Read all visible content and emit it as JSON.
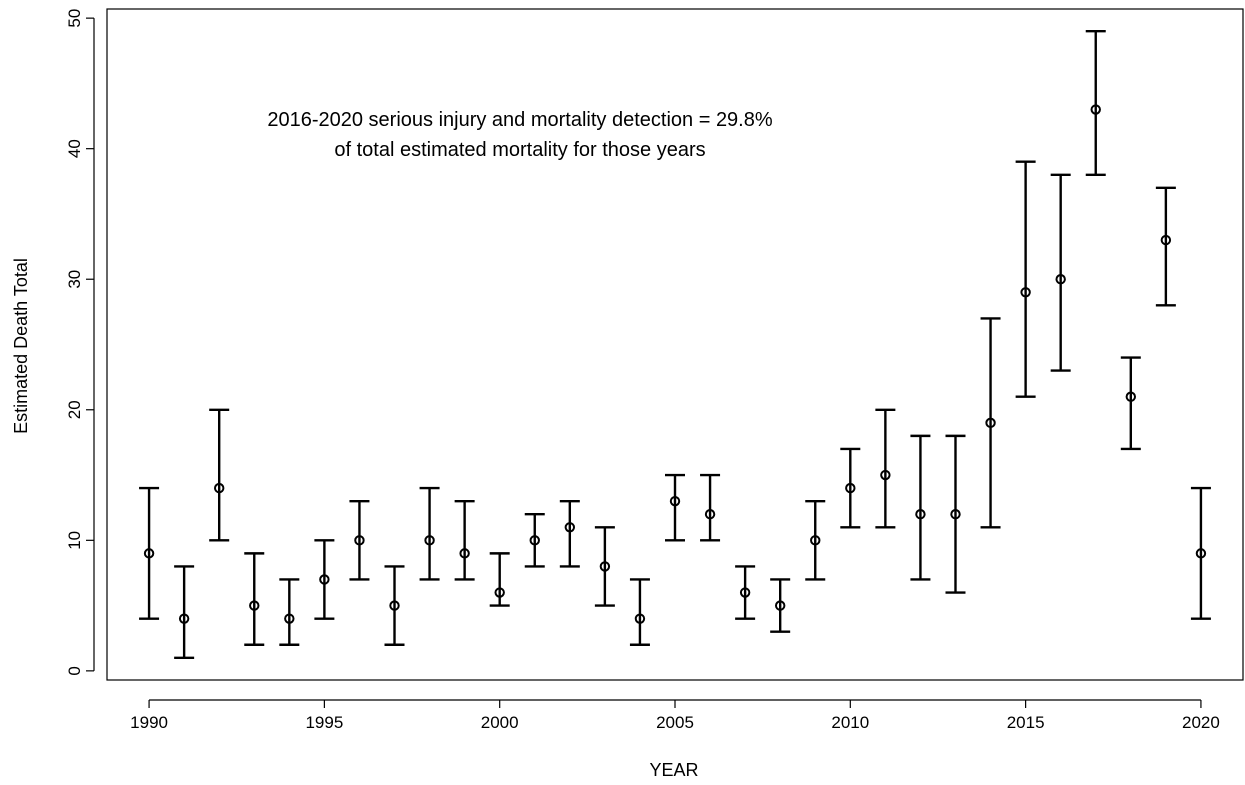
{
  "chart_data": {
    "type": "scatter",
    "xlabel": "YEAR",
    "ylabel": "Estimated Death Total",
    "xlim": [
      1988.8,
      2021.2
    ],
    "ylim": [
      -0.7,
      50.7
    ],
    "x_ticks": [
      1990,
      1995,
      2000,
      2005,
      2010,
      2015,
      2020
    ],
    "y_ticks": [
      0,
      10,
      20,
      30,
      40,
      50
    ],
    "grid": false,
    "annotation": [
      "2016-2020 serious injury and mortality detection = 29.8%",
      "of total estimated mortality for those years"
    ],
    "series": [
      {
        "x": [
          1990,
          1991,
          1992,
          1993,
          1994,
          1995,
          1996,
          1997,
          1998,
          1999,
          2000,
          2001,
          2002,
          2003,
          2004,
          2005,
          2006,
          2007,
          2008,
          2009,
          2010,
          2011,
          2012,
          2013,
          2014,
          2015,
          2016,
          2017,
          2018,
          2019,
          2020
        ],
        "y": [
          9,
          4,
          14,
          5,
          4,
          7,
          10,
          5,
          10,
          9,
          6,
          10,
          11,
          8,
          4,
          13,
          12,
          6,
          5,
          10,
          14,
          15,
          12,
          12,
          19,
          29,
          30,
          43,
          21,
          33,
          9
        ],
        "lower": [
          4,
          1,
          10,
          2,
          2,
          4,
          7,
          2,
          7,
          7,
          5,
          8,
          8,
          5,
          2,
          10,
          10,
          4,
          3,
          7,
          11,
          11,
          7,
          6,
          11,
          21,
          23,
          38,
          17,
          28,
          4
        ],
        "upper": [
          14,
          8,
          20,
          9,
          7,
          10,
          13,
          8,
          14,
          13,
          9,
          12,
          13,
          11,
          7,
          15,
          15,
          8,
          7,
          13,
          17,
          20,
          18,
          18,
          27,
          39,
          38,
          49,
          24,
          37,
          14
        ]
      }
    ]
  }
}
